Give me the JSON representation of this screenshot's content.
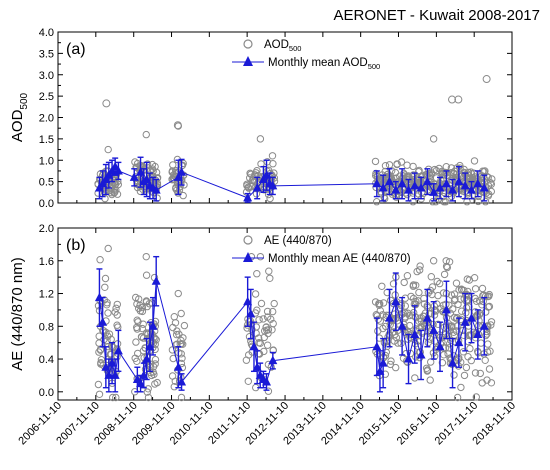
{
  "title": "AERONET - Kuwait 2008-2017",
  "x_tick_labels": [
    "2006-11-10",
    "2007-11-10",
    "2008-11-10",
    "2009-11-10",
    "2010-11-10",
    "2011-11-10",
    "2012-11-10",
    "2013-11-10",
    "2014-11-10",
    "2015-11-10",
    "2016-11-10",
    "2017-11-10",
    "2018-11-10"
  ],
  "colors": {
    "daily": "#8a8a8a",
    "monthly": "#1a1ad6",
    "axis": "#000000",
    "grid": "#cccccc"
  },
  "chart_data": [
    {
      "type": "scatter",
      "panel_label": "(a)",
      "ylabel_main": "AOD",
      "ylabel_sub": "500",
      "ylim": [
        0,
        4
      ],
      "y_ticks": [
        0,
        0.5,
        1,
        1.5,
        2,
        2.5,
        3,
        3.5,
        4
      ],
      "y_tick_labels": [
        "0.0",
        "0.5",
        "1.0",
        "1.5",
        "2.0",
        "2.5",
        "3.0",
        "3.5",
        "4.0"
      ],
      "grid": false,
      "legend_position": "top-center",
      "legend": [
        {
          "marker": "open-circle",
          "label_main": "AOD",
          "label_sub": "500"
        },
        {
          "marker": "filled-triangle-line",
          "label_main": "Monthly mean AOD",
          "label_sub": "500"
        }
      ],
      "daily_clusters": [
        {
          "x_start": "2007-12-01",
          "x_end": "2008-06-15",
          "base": 0.5,
          "spread": 0.3,
          "peak": 1.25,
          "n": 55
        },
        {
          "x_start": "2008-11-20",
          "x_end": "2009-06-30",
          "base": 0.55,
          "spread": 0.35,
          "peak": 1.6,
          "n": 70
        },
        {
          "x_start": "2009-11-15",
          "x_end": "2010-03-15",
          "base": 0.6,
          "spread": 0.35,
          "peak": 1.8,
          "n": 35
        },
        {
          "x_start": "2011-11-01",
          "x_end": "2012-08-01",
          "base": 0.55,
          "spread": 0.35,
          "peak": 1.5,
          "n": 55
        },
        {
          "x_start": "2015-04-01",
          "x_end": "2018-04-30",
          "base": 0.45,
          "spread": 0.35,
          "peak": 1.5,
          "n": 320
        }
      ],
      "daily_outliers": [
        {
          "x": "2008-02-20",
          "y": 2.33
        },
        {
          "x": "2010-01-10",
          "y": 1.82
        },
        {
          "x": "2017-04-10",
          "y": 2.42
        },
        {
          "x": "2017-06-10",
          "y": 2.42
        },
        {
          "x": "2018-03-10",
          "y": 2.9
        }
      ],
      "monthly_mean": [
        {
          "x": "2007-12-15",
          "y": 0.35,
          "err": 0.25
        },
        {
          "x": "2008-01-15",
          "y": 0.45,
          "err": 0.3
        },
        {
          "x": "2008-02-15",
          "y": 0.55,
          "err": 0.35
        },
        {
          "x": "2008-03-15",
          "y": 0.65,
          "err": 0.3
        },
        {
          "x": "2008-04-15",
          "y": 0.75,
          "err": 0.25
        },
        {
          "x": "2008-05-15",
          "y": 0.85,
          "err": 0.2
        },
        {
          "x": "2008-06-15",
          "y": 0.75,
          "err": 0.2
        },
        {
          "x": "2008-11-15",
          "y": 0.6,
          "err": 0.2
        },
        {
          "x": "2009-01-15",
          "y": 0.72,
          "err": 0.35
        },
        {
          "x": "2009-02-15",
          "y": 0.5,
          "err": 0.3
        },
        {
          "x": "2009-03-15",
          "y": 0.55,
          "err": 0.4
        },
        {
          "x": "2009-04-15",
          "y": 0.4,
          "err": 0.3
        },
        {
          "x": "2009-05-15",
          "y": 0.35,
          "err": 0.25
        },
        {
          "x": "2009-06-15",
          "y": 0.3,
          "err": 0.25
        },
        {
          "x": "2010-01-15",
          "y": 0.6,
          "err": 0.4
        },
        {
          "x": "2010-02-15",
          "y": 0.72,
          "err": 0.3
        },
        {
          "x": "2011-11-15",
          "y": 0.12,
          "err": 0.1
        },
        {
          "x": "2012-02-15",
          "y": 0.35,
          "err": 0.25
        },
        {
          "x": "2012-04-15",
          "y": 0.55,
          "err": 0.3
        },
        {
          "x": "2012-05-15",
          "y": 0.65,
          "err": 0.35
        },
        {
          "x": "2012-06-15",
          "y": 0.45,
          "err": 0.25
        },
        {
          "x": "2012-07-15",
          "y": 0.4,
          "err": 0.2
        },
        {
          "x": "2015-04-15",
          "y": 0.45,
          "err": 0.3
        },
        {
          "x": "2015-06-15",
          "y": 0.35,
          "err": 0.3
        },
        {
          "x": "2015-08-15",
          "y": 0.5,
          "err": 0.3
        },
        {
          "x": "2015-10-15",
          "y": 0.3,
          "err": 0.2
        },
        {
          "x": "2015-12-15",
          "y": 0.45,
          "err": 0.35
        },
        {
          "x": "2016-02-15",
          "y": 0.3,
          "err": 0.25
        },
        {
          "x": "2016-04-15",
          "y": 0.4,
          "err": 0.3
        },
        {
          "x": "2016-06-15",
          "y": 0.35,
          "err": 0.25
        },
        {
          "x": "2016-08-15",
          "y": 0.5,
          "err": 0.3
        },
        {
          "x": "2016-10-15",
          "y": 0.25,
          "err": 0.2
        },
        {
          "x": "2016-12-15",
          "y": 0.35,
          "err": 0.25
        },
        {
          "x": "2017-02-15",
          "y": 0.45,
          "err": 0.3
        },
        {
          "x": "2017-04-15",
          "y": 0.3,
          "err": 0.25
        },
        {
          "x": "2017-06-15",
          "y": 0.5,
          "err": 0.35
        },
        {
          "x": "2017-08-15",
          "y": 0.4,
          "err": 0.3
        },
        {
          "x": "2017-10-15",
          "y": 0.3,
          "err": 0.2
        },
        {
          "x": "2017-12-15",
          "y": 0.45,
          "err": 0.3
        },
        {
          "x": "2018-02-15",
          "y": 0.35,
          "err": 0.3
        }
      ]
    },
    {
      "type": "scatter",
      "panel_label": "(b)",
      "ylabel_main": "AE (440/870 nm)",
      "ylabel_sub": "",
      "ylim": [
        -0.1,
        2.0
      ],
      "y_ticks": [
        0,
        0.4,
        0.8,
        1.2,
        1.6,
        2.0
      ],
      "y_tick_labels": [
        "0.0",
        "0.4",
        "0.8",
        "1.2",
        "1.6",
        "2.0"
      ],
      "grid": false,
      "legend_position": "top-center",
      "legend": [
        {
          "marker": "open-circle",
          "label_main": "AE (440/870)",
          "label_sub": ""
        },
        {
          "marker": "filled-triangle-line",
          "label_main": "Monthly mean AE (440/870)",
          "label_sub": ""
        }
      ],
      "daily_clusters": [
        {
          "x_start": "2007-12-01",
          "x_end": "2008-06-15",
          "base": 0.6,
          "spread": 0.6,
          "peak": 1.75,
          "n": 60
        },
        {
          "x_start": "2008-11-20",
          "x_end": "2009-06-30",
          "base": 0.6,
          "spread": 0.6,
          "peak": 1.65,
          "n": 80
        },
        {
          "x_start": "2009-11-15",
          "x_end": "2010-03-15",
          "base": 0.5,
          "spread": 0.5,
          "peak": 1.2,
          "n": 30
        },
        {
          "x_start": "2011-11-01",
          "x_end": "2012-08-01",
          "base": 0.7,
          "spread": 0.6,
          "peak": 1.65,
          "n": 55
        },
        {
          "x_start": "2015-04-01",
          "x_end": "2018-04-30",
          "base": 0.8,
          "spread": 0.6,
          "peak": 1.6,
          "n": 340
        }
      ],
      "daily_outliers": [],
      "monthly_mean": [
        {
          "x": "2007-12-15",
          "y": 1.15,
          "err": 0.35
        },
        {
          "x": "2008-01-15",
          "y": 0.85,
          "err": 0.3
        },
        {
          "x": "2008-02-15",
          "y": 0.3,
          "err": 0.25
        },
        {
          "x": "2008-03-15",
          "y": 0.2,
          "err": 0.2
        },
        {
          "x": "2008-04-15",
          "y": 0.35,
          "err": 0.25
        },
        {
          "x": "2008-05-15",
          "y": 0.2,
          "err": 0.2
        },
        {
          "x": "2008-06-15",
          "y": 0.5,
          "err": 0.25
        },
        {
          "x": "2008-12-15",
          "y": 0.15,
          "err": 0.15
        },
        {
          "x": "2009-01-15",
          "y": 0.1,
          "err": 0.1
        },
        {
          "x": "2009-02-15",
          "y": 0.2,
          "err": 0.15
        },
        {
          "x": "2009-03-15",
          "y": 0.4,
          "err": 0.25
        },
        {
          "x": "2009-04-15",
          "y": 0.55,
          "err": 0.3
        },
        {
          "x": "2009-05-15",
          "y": 0.8,
          "err": 0.35
        },
        {
          "x": "2009-06-15",
          "y": 1.35,
          "err": 0.3
        },
        {
          "x": "2010-01-15",
          "y": 0.3,
          "err": 0.25
        },
        {
          "x": "2010-02-15",
          "y": 0.12,
          "err": 0.1
        },
        {
          "x": "2011-11-15",
          "y": 1.1,
          "err": 0.3
        },
        {
          "x": "2011-12-15",
          "y": 0.95,
          "err": 0.3
        },
        {
          "x": "2012-01-15",
          "y": 0.55,
          "err": 0.3
        },
        {
          "x": "2012-02-15",
          "y": 0.3,
          "err": 0.2
        },
        {
          "x": "2012-03-15",
          "y": 0.2,
          "err": 0.15
        },
        {
          "x": "2012-04-15",
          "y": 0.15,
          "err": 0.1
        },
        {
          "x": "2012-05-15",
          "y": 0.12,
          "err": 0.1
        },
        {
          "x": "2012-07-15",
          "y": 0.38,
          "err": 0.1
        },
        {
          "x": "2015-04-15",
          "y": 0.55,
          "err": 0.35
        },
        {
          "x": "2015-05-15",
          "y": 0.25,
          "err": 0.25
        },
        {
          "x": "2015-06-15",
          "y": 0.35,
          "err": 0.3
        },
        {
          "x": "2015-08-15",
          "y": 0.9,
          "err": 0.35
        },
        {
          "x": "2015-10-15",
          "y": 1.1,
          "err": 0.35
        },
        {
          "x": "2015-12-15",
          "y": 0.8,
          "err": 0.35
        },
        {
          "x": "2016-02-15",
          "y": 0.4,
          "err": 0.3
        },
        {
          "x": "2016-04-15",
          "y": 0.7,
          "err": 0.35
        },
        {
          "x": "2016-06-15",
          "y": 0.45,
          "err": 0.3
        },
        {
          "x": "2016-08-15",
          "y": 0.9,
          "err": 0.35
        },
        {
          "x": "2016-10-15",
          "y": 0.75,
          "err": 0.35
        },
        {
          "x": "2016-12-15",
          "y": 0.55,
          "err": 0.3
        },
        {
          "x": "2017-02-15",
          "y": 1.0,
          "err": 0.35
        },
        {
          "x": "2017-04-15",
          "y": 0.35,
          "err": 0.3
        },
        {
          "x": "2017-06-15",
          "y": 0.6,
          "err": 0.3
        },
        {
          "x": "2017-08-15",
          "y": 0.85,
          "err": 0.35
        },
        {
          "x": "2017-10-15",
          "y": 0.9,
          "err": 0.3
        },
        {
          "x": "2017-12-15",
          "y": 0.7,
          "err": 0.3
        },
        {
          "x": "2018-02-15",
          "y": 0.8,
          "err": 0.35
        }
      ]
    }
  ]
}
